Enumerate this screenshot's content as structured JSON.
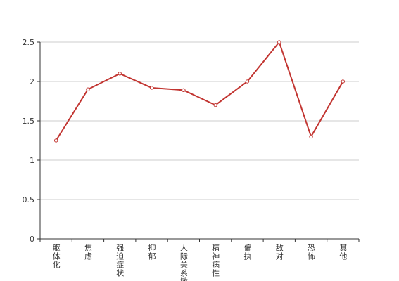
{
  "chart_data": {
    "type": "line",
    "categories": [
      "躯体化",
      "焦虑",
      "强迫症状",
      "抑郁",
      "人际关系敏感",
      "精神病性",
      "偏执",
      "敌对",
      "恐怖",
      "其他"
    ],
    "values": [
      1.25,
      1.9,
      2.1,
      1.92,
      1.89,
      1.7,
      2.0,
      2.5,
      1.3,
      2.0
    ],
    "color": "#c23531",
    "ylim": [
      0,
      2.5
    ],
    "yticks": [
      0,
      0.5,
      1,
      1.5,
      2,
      2.5
    ],
    "grid": true
  }
}
